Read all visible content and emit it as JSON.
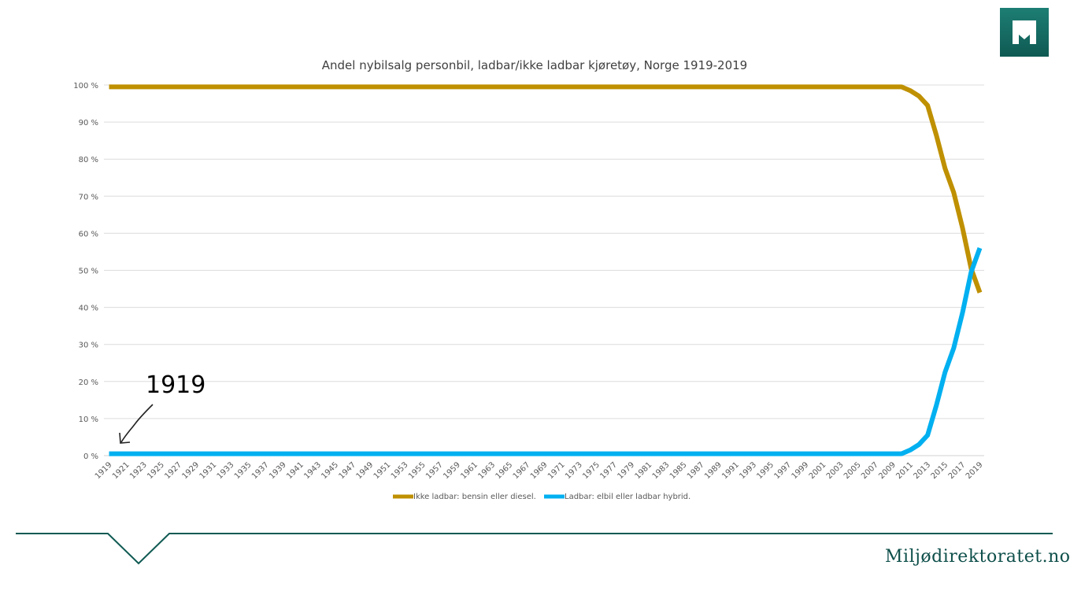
{
  "chart_data": {
    "type": "line",
    "title": "Andel nybilsalg personbil, ladbar/ikke ladbar kjøretøy, Norge 1919-2019",
    "xlabel": "",
    "ylabel": "",
    "x_range": [
      1919,
      2019
    ],
    "ylim": [
      0,
      100
    ],
    "y_ticks": [
      "0 %",
      "10 %",
      "20 %",
      "30 %",
      "40 %",
      "50 %",
      "60 %",
      "70 %",
      "80 %",
      "90 %",
      "100 %"
    ],
    "x_tick_labels": [
      "1919",
      "1921",
      "1923",
      "1925",
      "1927",
      "1929",
      "1931",
      "1933",
      "1935",
      "1937",
      "1939",
      "1941",
      "1943",
      "1945",
      "1947",
      "1949",
      "1951",
      "1953",
      "1955",
      "1957",
      "1959",
      "1961",
      "1963",
      "1965",
      "1967",
      "1969",
      "1971",
      "1973",
      "1975",
      "1977",
      "1979",
      "1981",
      "1983",
      "1985",
      "1987",
      "1989",
      "1991",
      "1993",
      "1995",
      "1997",
      "1999",
      "2001",
      "2003",
      "2005",
      "2007",
      "2009",
      "2011",
      "2013",
      "2015",
      "2017",
      "2019"
    ],
    "grid": "horizontal",
    "legend_position": "bottom",
    "series": [
      {
        "name": "Ikke ladbar: bensin eller diesel.",
        "color": "#bf9000",
        "x": [
          1919,
          2010,
          2011,
          2012,
          2013,
          2014,
          2015,
          2016,
          2017,
          2018,
          2019
        ],
        "values": [
          99.5,
          99.5,
          98.5,
          97,
          94.5,
          86.5,
          77.5,
          71,
          61.5,
          50.5,
          44
        ]
      },
      {
        "name": "Ladbar: elbil eller ladbar hybrid.",
        "color": "#00b0f0",
        "x": [
          1919,
          2010,
          2011,
          2012,
          2013,
          2014,
          2015,
          2016,
          2017,
          2018,
          2019
        ],
        "values": [
          0.5,
          0.5,
          1.5,
          3,
          5.5,
          13.5,
          22.5,
          29,
          38.5,
          49.5,
          56
        ]
      }
    ],
    "annotations": [
      {
        "text": "1919",
        "points_to_year": 1919
      }
    ]
  },
  "annotation_text": "1919",
  "site_name": "Miljødirektoratet.no",
  "logo": {
    "icon": "miljodirektoratet-logo-icon",
    "bg_color": "#15685f"
  }
}
